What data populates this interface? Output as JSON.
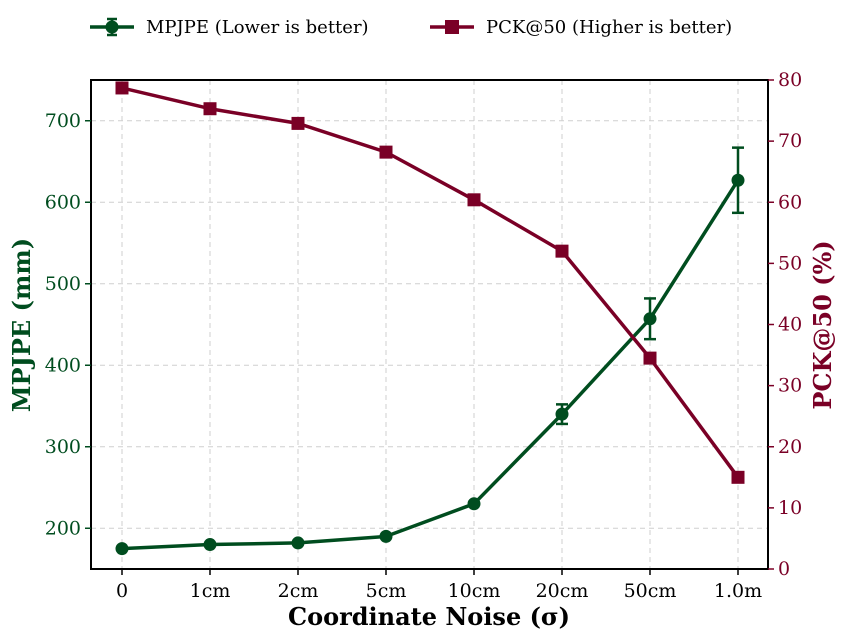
{
  "chart_data": {
    "type": "line",
    "categories": [
      "0",
      "1cm",
      "2cm",
      "5cm",
      "10cm",
      "20cm",
      "50cm",
      "1.0m"
    ],
    "xlabel": "Coordinate Noise (σ)",
    "y_left": {
      "label": "MPJPE (mm)",
      "range": [
        150,
        750
      ],
      "ticks": [
        200,
        300,
        400,
        500,
        600,
        700
      ],
      "color": "#004d1f"
    },
    "y_right": {
      "label": "PCK@50 (%)",
      "range": [
        0,
        80
      ],
      "ticks": [
        0,
        10,
        20,
        30,
        40,
        50,
        60,
        70,
        80
      ],
      "color": "#7a0026"
    },
    "grid": true,
    "legend_position": "top, outside plot",
    "series": [
      {
        "name": "MPJPE (Lower is better)",
        "axis": "left",
        "marker": "circle",
        "color": "#004d1f",
        "values": [
          175,
          180,
          182,
          190,
          230,
          340,
          457,
          627
        ],
        "error": [
          0,
          0,
          0,
          0,
          0,
          12,
          25,
          40
        ]
      },
      {
        "name": "PCK@50 (Higher is better)",
        "axis": "right",
        "marker": "square",
        "color": "#7a0026",
        "values": [
          78.7,
          75.3,
          72.9,
          68.2,
          60.4,
          52.0,
          34.5,
          15.0
        ]
      }
    ]
  }
}
